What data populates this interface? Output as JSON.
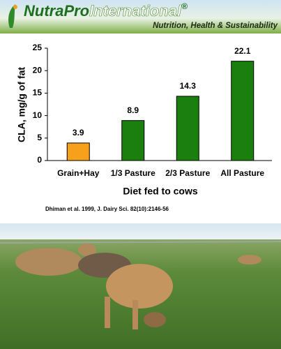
{
  "header": {
    "brand": "NutraPro",
    "brand_2": "International",
    "registered": "®",
    "tagline": "Nutrition, Health & Sustainability"
  },
  "chart_data": {
    "type": "bar",
    "categories": [
      "Grain+Hay",
      "1/3 Pasture",
      "2/3 Pasture",
      "All Pasture"
    ],
    "values": [
      3.9,
      8.9,
      14.3,
      22.1
    ],
    "colors": [
      "#f7a01c",
      "#1a7f0e",
      "#1a7f0e",
      "#1a7f0e"
    ],
    "y_label": "CLA, mg/g of fat",
    "x_label": "Diet fed to cows",
    "source": "Dhiman et al. 1999, J. Dairy Sci. 82(10):2146-56",
    "ylim": [
      0,
      25
    ],
    "yticks": [
      0,
      5,
      10,
      15,
      20,
      25
    ],
    "grid": false
  }
}
